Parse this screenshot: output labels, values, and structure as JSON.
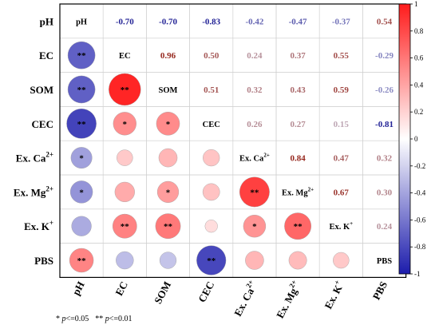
{
  "chart_data": {
    "type": "heatmap",
    "variables": [
      "pH",
      "EC",
      "SOM",
      "CEC",
      "Ex. Ca2+",
      "Ex. Mg2+",
      "Ex. K+",
      "PBS"
    ],
    "labels": [
      {
        "base": "pH",
        "sup": ""
      },
      {
        "base": "EC",
        "sup": ""
      },
      {
        "base": "SOM",
        "sup": ""
      },
      {
        "base": "CEC",
        "sup": ""
      },
      {
        "base": "Ex. Ca",
        "sup": "2+"
      },
      {
        "base": "Ex. Mg",
        "sup": "2+"
      },
      {
        "base": "Ex. K",
        "sup": "+"
      },
      {
        "base": "PBS",
        "sup": ""
      }
    ],
    "matrix": [
      [
        1,
        -0.7,
        -0.7,
        -0.83,
        -0.42,
        -0.47,
        -0.37,
        0.54
      ],
      [
        -0.7,
        1,
        0.96,
        0.5,
        0.24,
        0.37,
        0.55,
        -0.29
      ],
      [
        -0.7,
        0.96,
        1,
        0.51,
        0.32,
        0.43,
        0.59,
        -0.26
      ],
      [
        -0.83,
        0.5,
        0.51,
        1,
        0.26,
        0.27,
        0.15,
        -0.81
      ],
      [
        -0.42,
        0.24,
        0.32,
        0.26,
        1,
        0.84,
        0.47,
        0.32
      ],
      [
        -0.47,
        0.37,
        0.43,
        0.27,
        0.84,
        1,
        0.67,
        0.3
      ],
      [
        -0.37,
        0.55,
        0.59,
        0.15,
        0.47,
        0.67,
        1,
        0.24
      ],
      [
        0.54,
        -0.29,
        -0.26,
        -0.81,
        0.32,
        0.3,
        0.24,
        1
      ]
    ],
    "upper_labels": [
      [
        "",
        "-0.70",
        "-0.70",
        "-0.83",
        "-0.42",
        "-0.47",
        "-0.37",
        "0.54"
      ],
      [
        "",
        "",
        "0.96",
        "0.50",
        "0.24",
        "0.37",
        "0.55",
        "-0.29"
      ],
      [
        "",
        "",
        "",
        "0.51",
        "0.32",
        "0.43",
        "0.59",
        "-0.26"
      ],
      [
        "",
        "",
        "",
        "",
        "0.26",
        "0.27",
        "0.15",
        "-0.81"
      ],
      [
        "",
        "",
        "",
        "",
        "",
        "0.84",
        "0.47",
        "0.32"
      ],
      [
        "",
        "",
        "",
        "",
        "",
        "",
        "0.67",
        "0.30"
      ],
      [
        "",
        "",
        "",
        "",
        "",
        "",
        "",
        "0.24"
      ],
      [
        "",
        "",
        "",
        "",
        "",
        "",
        "",
        ""
      ]
    ],
    "significance": [
      [
        "",
        "",
        "",
        "",
        "",
        "",
        "",
        ""
      ],
      [
        "**",
        "",
        "",
        "",
        "",
        "",
        "",
        ""
      ],
      [
        "**",
        "**",
        "",
        "",
        "",
        "",
        "",
        ""
      ],
      [
        "**",
        "*",
        "*",
        "",
        "",
        "",
        "",
        ""
      ],
      [
        "*",
        "",
        "",
        "",
        "",
        "",
        "",
        ""
      ],
      [
        "*",
        "",
        "*",
        "",
        "**",
        "",
        "",
        ""
      ],
      [
        "",
        "**",
        "**",
        "",
        "*",
        "**",
        "",
        ""
      ],
      [
        "**",
        "",
        "",
        "**",
        "",
        "",
        "",
        ""
      ]
    ],
    "colorbar": {
      "range": [
        -1,
        1
      ],
      "ticks": [
        "1",
        "0.8",
        "0.6",
        "0.4",
        "0.2",
        "0",
        "-0.2",
        "-0.4",
        "-0.6",
        "-0.8",
        "-1"
      ],
      "colors": {
        "negative": "#1c1cac",
        "zero": "#ffffff",
        "positive": "#ff1c1c"
      }
    },
    "footnote": [
      {
        "stars": "*",
        "p": "p",
        "rest": "<=0.05"
      },
      {
        "stars": "**",
        "p": "p",
        "rest": "<=0.01"
      }
    ]
  }
}
